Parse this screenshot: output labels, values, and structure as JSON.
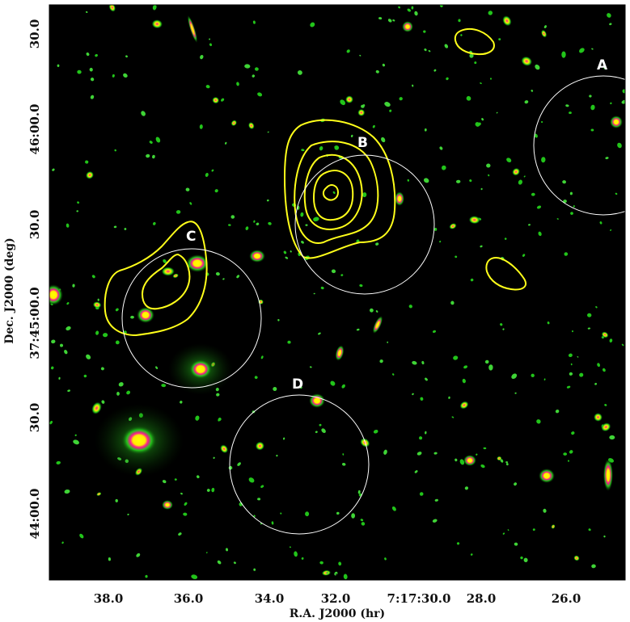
{
  "figure": {
    "x_axis_title": "R.A. J2000 (hr)",
    "y_axis_title": "Dec. J2000 (deg)",
    "x_ticks": [
      "38.0",
      "36.0",
      "34.0",
      "32.0",
      "7:17:30.0",
      "28.0",
      "26.0"
    ],
    "y_ticks": [
      "30.0",
      "46:00.0",
      "30.0",
      "37:45:00.0",
      "30.0",
      "44:00.0"
    ]
  },
  "regions": [
    {
      "label": "A"
    },
    {
      "label": "B"
    },
    {
      "label": "C"
    },
    {
      "label": "D"
    }
  ],
  "colors": {
    "background": "#000000",
    "galaxy_outer": "#22c41a",
    "galaxy_mid": "#ff1493",
    "galaxy_core": "#ffff00",
    "contour": "#ffff1a",
    "circle": "#ffffff"
  }
}
